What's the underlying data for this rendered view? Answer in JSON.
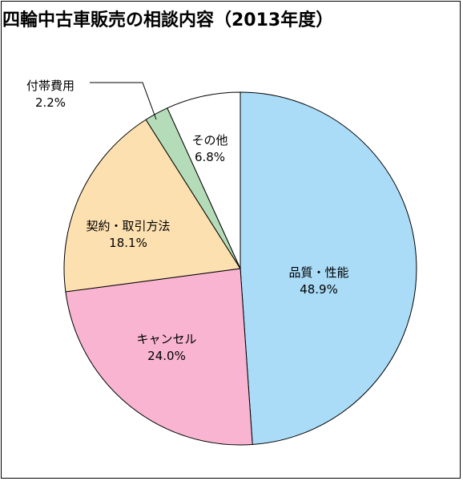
{
  "chart_data": {
    "type": "pie",
    "title": "四輪中古車販売の相談内容（2013年度）",
    "start_angle_deg": 0,
    "direction": "clockwise",
    "slices": [
      {
        "label": "品質・性能",
        "value": 48.9,
        "value_label": "48.9%",
        "color": "#aadcf8"
      },
      {
        "label": "キャンセル",
        "value": 24.0,
        "value_label": "24.0%",
        "color": "#f8b4d0"
      },
      {
        "label": "契約・取引方法",
        "value": 18.1,
        "value_label": "18.1%",
        "color": "#fde0b0"
      },
      {
        "label": "付帯費用",
        "value": 2.2,
        "value_label": "2.2%",
        "color": "#b4dcb8"
      },
      {
        "label": "その他",
        "value": 6.8,
        "value_label": "6.8%",
        "color": "#ffffff"
      }
    ],
    "legend": "none"
  }
}
